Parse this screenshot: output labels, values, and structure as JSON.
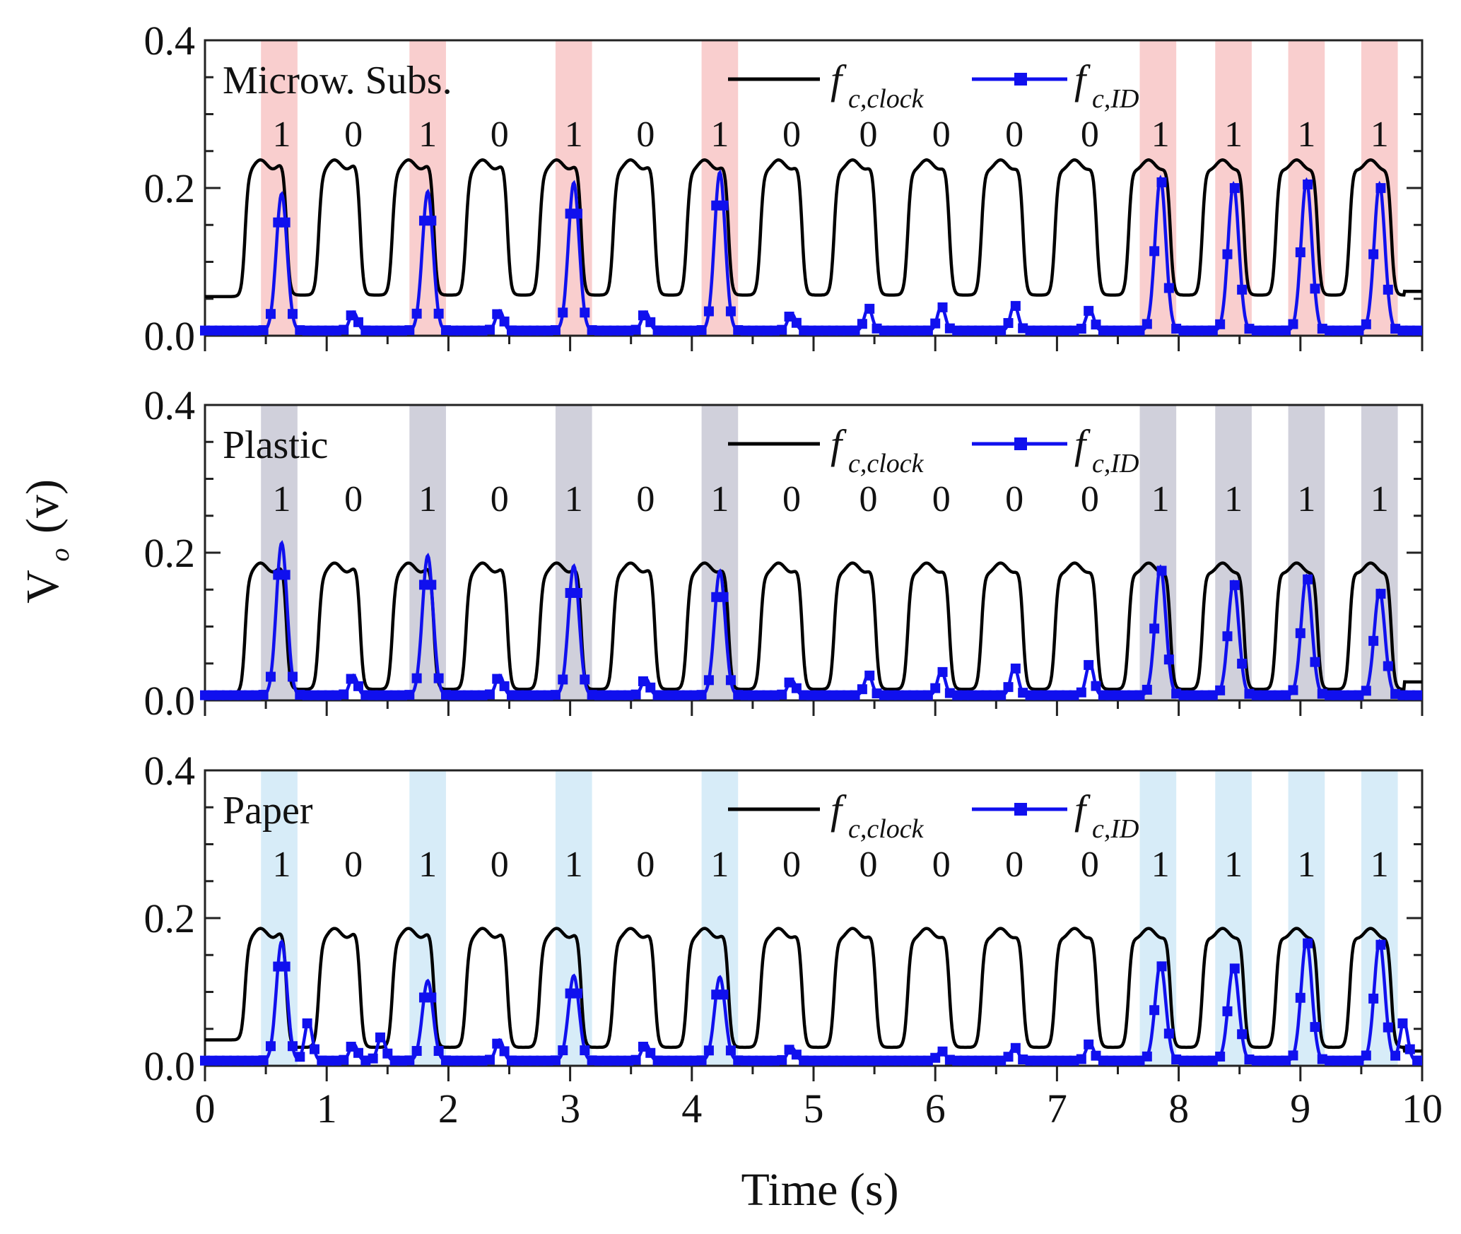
{
  "chart_data": {
    "type": "line",
    "xlabel": "Time (s)",
    "ylabel_main": "V",
    "ylabel_sub": "o",
    "ylabel_unit": "(v)",
    "xlim": [
      0,
      10
    ],
    "ylim": [
      0,
      0.4
    ],
    "x_ticks": [
      "0",
      "1",
      "2",
      "3",
      "4",
      "5",
      "6",
      "7",
      "8",
      "9",
      "10"
    ],
    "y_ticks": [
      "0.0",
      "0.2",
      "0.4"
    ],
    "bit_times": [
      0.63,
      1.22,
      1.83,
      2.42,
      3.03,
      3.62,
      4.23,
      4.82,
      5.45,
      6.05,
      6.65,
      7.27,
      7.85,
      8.45,
      9.05,
      9.65
    ],
    "bits": [
      "1",
      "0",
      "1",
      "0",
      "1",
      "0",
      "1",
      "0",
      "0",
      "0",
      "0",
      "0",
      "1",
      "1",
      "1",
      "1"
    ],
    "highlight_bands": [
      [
        0.46,
        0.76
      ],
      [
        1.68,
        1.98
      ],
      [
        2.88,
        3.18
      ],
      [
        4.08,
        4.38
      ],
      [
        7.68,
        7.98
      ],
      [
        8.3,
        8.6
      ],
      [
        8.9,
        9.2
      ],
      [
        9.5,
        9.8
      ]
    ],
    "legend": [
      {
        "name_main": "f",
        "name_sub": "c,clock",
        "color": "#000000"
      },
      {
        "name_main": "f",
        "name_sub": "c,ID",
        "color": "#1010ee"
      }
    ],
    "panels": [
      {
        "label": "Microw. Subs.",
        "band_color": "#f4a6a6",
        "clock": {
          "low": 0.055,
          "high": 0.232,
          "first_low": 0.053,
          "end_low": 0.06
        },
        "id_pulses": [
          {
            "t": 0.63,
            "peak": 0.192
          },
          {
            "t": 1.83,
            "peak": 0.195
          },
          {
            "t": 3.03,
            "peak": 0.207
          },
          {
            "t": 4.23,
            "peak": 0.221
          },
          {
            "t": 7.85,
            "peak": 0.213
          },
          {
            "t": 8.45,
            "peak": 0.205
          },
          {
            "t": 9.05,
            "peak": 0.21
          },
          {
            "t": 9.65,
            "peak": 0.205
          }
        ],
        "id_bumps": [
          {
            "t": 1.22,
            "peak": 0.032
          },
          {
            "t": 2.42,
            "peak": 0.034
          },
          {
            "t": 3.62,
            "peak": 0.032
          },
          {
            "t": 4.82,
            "peak": 0.03
          },
          {
            "t": 5.45,
            "peak": 0.038
          },
          {
            "t": 6.05,
            "peak": 0.04
          },
          {
            "t": 6.65,
            "peak": 0.042
          },
          {
            "t": 7.27,
            "peak": 0.035
          }
        ]
      },
      {
        "label": "Plastic",
        "band_color": "#a9a9be",
        "clock": {
          "low": 0.015,
          "high": 0.18,
          "first_low": 0.01,
          "end_low": 0.025
        },
        "id_pulses": [
          {
            "t": 0.63,
            "peak": 0.213
          },
          {
            "t": 1.83,
            "peak": 0.196
          },
          {
            "t": 3.03,
            "peak": 0.182
          },
          {
            "t": 4.23,
            "peak": 0.175
          },
          {
            "t": 7.85,
            "peak": 0.18
          },
          {
            "t": 8.45,
            "peak": 0.16
          },
          {
            "t": 9.05,
            "peak": 0.168
          },
          {
            "t": 9.65,
            "peak": 0.148
          }
        ],
        "id_bumps": [
          {
            "t": 1.22,
            "peak": 0.034
          },
          {
            "t": 2.42,
            "peak": 0.034
          },
          {
            "t": 3.62,
            "peak": 0.03
          },
          {
            "t": 4.82,
            "peak": 0.028
          },
          {
            "t": 5.45,
            "peak": 0.035
          },
          {
            "t": 6.05,
            "peak": 0.04
          },
          {
            "t": 6.65,
            "peak": 0.045
          },
          {
            "t": 7.27,
            "peak": 0.05
          }
        ]
      },
      {
        "label": "Paper",
        "band_color": "#b7dcf3",
        "clock": {
          "low": 0.025,
          "high": 0.18,
          "first_low": 0.035,
          "end_low": 0.02
        },
        "id_pulses": [
          {
            "t": 0.63,
            "peak": 0.168
          },
          {
            "t": 1.83,
            "peak": 0.115
          },
          {
            "t": 3.03,
            "peak": 0.122
          },
          {
            "t": 4.23,
            "peak": 0.12
          },
          {
            "t": 7.85,
            "peak": 0.138
          },
          {
            "t": 8.45,
            "peak": 0.135
          },
          {
            "t": 9.05,
            "peak": 0.17
          },
          {
            "t": 9.65,
            "peak": 0.168
          }
        ],
        "id_bumps": [
          {
            "t": 0.85,
            "peak": 0.06
          },
          {
            "t": 1.22,
            "peak": 0.03
          },
          {
            "t": 1.45,
            "peak": 0.04
          },
          {
            "t": 2.42,
            "peak": 0.035
          },
          {
            "t": 3.62,
            "peak": 0.03
          },
          {
            "t": 4.82,
            "peak": 0.025
          },
          {
            "t": 6.05,
            "peak": 0.02
          },
          {
            "t": 6.65,
            "peak": 0.025
          },
          {
            "t": 7.27,
            "peak": 0.03
          },
          {
            "t": 9.85,
            "peak": 0.06
          }
        ]
      }
    ]
  }
}
